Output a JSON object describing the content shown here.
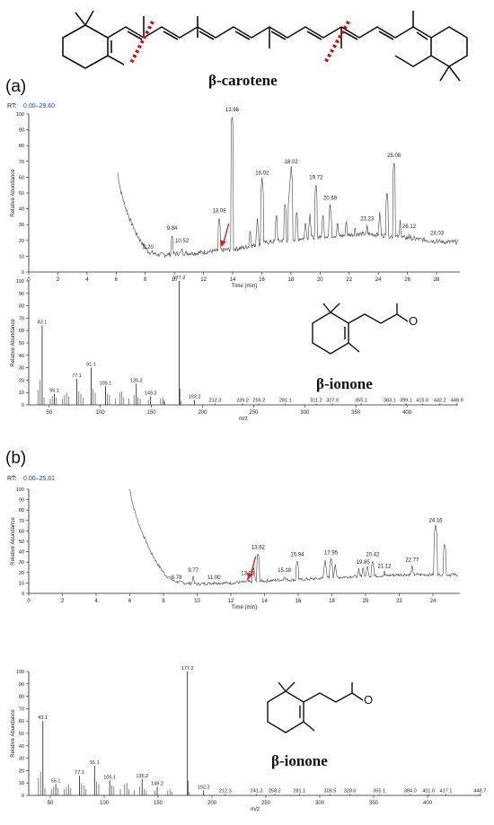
{
  "molecule_top": {
    "name": "β-carotene"
  },
  "panel_a": {
    "label": "(a)",
    "rt_label": "RT:",
    "rt_range": "0.00–29.60",
    "compound": "β-ionone"
  },
  "panel_b": {
    "label": "(b)",
    "rt_label": "RT:",
    "rt_range": "0.00–25.61",
    "compound": "β-ionone"
  },
  "colors": {
    "trace": "#444444",
    "axis": "#222222",
    "rt_range": "#1f3fb5",
    "arrow": "#e02020",
    "cut": "#d01010"
  },
  "chart_data": [
    {
      "id": "chromatogram-a",
      "type": "line",
      "xlabel": "Time (min)",
      "ylabel": "Relative Abundance",
      "xlim": [
        0,
        29.6
      ],
      "ylim": [
        0,
        100
      ],
      "xticks": [
        0,
        2,
        4,
        6,
        8,
        10,
        12,
        14,
        16,
        18,
        20,
        22,
        24,
        26,
        28
      ],
      "yticks": [
        0,
        10,
        20,
        30,
        40,
        50,
        60,
        70,
        80,
        90,
        100
      ],
      "baseline": [
        [
          6.1,
          63
        ],
        [
          6.3,
          52
        ],
        [
          6.6,
          42
        ],
        [
          7.0,
          32
        ],
        [
          7.4,
          24
        ],
        [
          7.8,
          18
        ],
        [
          8.2,
          13
        ],
        [
          8.8,
          11
        ],
        [
          9.5,
          11
        ],
        [
          10.5,
          12
        ],
        [
          11.5,
          12
        ],
        [
          12.5,
          13
        ],
        [
          13.5,
          14
        ],
        [
          14.5,
          15
        ],
        [
          15.5,
          17
        ],
        [
          16.5,
          19
        ],
        [
          17.5,
          20
        ],
        [
          18.5,
          21
        ],
        [
          19.5,
          22
        ],
        [
          20.5,
          23
        ],
        [
          21.5,
          23
        ],
        [
          22.5,
          24
        ],
        [
          23.5,
          24
        ],
        [
          24.5,
          23
        ],
        [
          25.5,
          22
        ],
        [
          26.5,
          21
        ],
        [
          27.5,
          20
        ],
        [
          28.5,
          19
        ],
        [
          29.5,
          19
        ]
      ],
      "peaks": [
        {
          "x": 8.2,
          "y": 13,
          "label": "8.20"
        },
        {
          "x": 9.84,
          "y": 25,
          "label": "9.84"
        },
        {
          "x": 10.52,
          "y": 17,
          "label": "10.52"
        },
        {
          "x": 13.08,
          "y": 36,
          "label": "13.08"
        },
        {
          "x": 13.96,
          "y": 100,
          "label": "13.96"
        },
        {
          "x": 16.02,
          "y": 60,
          "label": "16.02"
        },
        {
          "x": 18.02,
          "y": 67,
          "label": "18.02"
        },
        {
          "x": 19.72,
          "y": 57,
          "label": "19.72"
        },
        {
          "x": 20.69,
          "y": 44,
          "label": "20.69"
        },
        {
          "x": 23.23,
          "y": 31,
          "label": "23.23"
        },
        {
          "x": 25.08,
          "y": 71,
          "label": "25.08"
        },
        {
          "x": 26.12,
          "y": 26,
          "label": "26.12"
        },
        {
          "x": 28.03,
          "y": 22,
          "label": "28.03"
        }
      ],
      "extra_peaks": [
        [
          15.2,
          28
        ],
        [
          15.7,
          34
        ],
        [
          17.0,
          38
        ],
        [
          17.6,
          45
        ],
        [
          17.9,
          52
        ],
        [
          18.4,
          40
        ],
        [
          19.0,
          33
        ],
        [
          19.3,
          37
        ],
        [
          20.2,
          38
        ],
        [
          21.2,
          33
        ],
        [
          21.8,
          34
        ],
        [
          22.4,
          30
        ],
        [
          24.1,
          38
        ],
        [
          24.6,
          52
        ],
        [
          25.5,
          33
        ]
      ],
      "arrow_at": 13.3
    },
    {
      "id": "spectrum-a",
      "type": "bar",
      "xlabel": "m/z",
      "ylabel": "Relative Abundance",
      "xlim": [
        30,
        450
      ],
      "ylim": [
        0,
        100
      ],
      "xticks": [
        50,
        100,
        150,
        200,
        250,
        300,
        350,
        400
      ],
      "yticks": [
        0,
        10,
        20,
        30,
        40,
        50,
        60,
        70,
        80,
        90,
        100
      ],
      "peaks": [
        {
          "x": 43.1,
          "y": 64,
          "label": "43.1"
        },
        {
          "x": 55.1,
          "y": 9,
          "label": "55.1"
        },
        {
          "x": 77.1,
          "y": 21,
          "label": "77.1"
        },
        {
          "x": 91.1,
          "y": 30,
          "label": "91.1"
        },
        {
          "x": 105.1,
          "y": 15,
          "label": "105.1"
        },
        {
          "x": 135.2,
          "y": 17,
          "label": "135.2"
        },
        {
          "x": 149.2,
          "y": 7,
          "label": "149.2"
        },
        {
          "x": 177.2,
          "y": 100,
          "label": "177.2"
        },
        {
          "x": 192.2,
          "y": 4,
          "label": "192.2"
        },
        {
          "x": 212.3,
          "y": 1,
          "label": "212.3"
        },
        {
          "x": 239.2,
          "y": 1,
          "label": "239.2"
        },
        {
          "x": 255.2,
          "y": 1,
          "label": "255.2"
        },
        {
          "x": 281.1,
          "y": 1,
          "label": "281.1"
        },
        {
          "x": 311.2,
          "y": 1,
          "label": "311.2"
        },
        {
          "x": 327.0,
          "y": 1,
          "label": "327.0"
        },
        {
          "x": 355.1,
          "y": 1,
          "label": "355.1"
        },
        {
          "x": 383.1,
          "y": 1,
          "label": "383.1"
        },
        {
          "x": 399.1,
          "y": 1,
          "label": "399.1"
        },
        {
          "x": 415.0,
          "y": 1,
          "label": "415.0"
        },
        {
          "x": 432.2,
          "y": 1,
          "label": "432.2"
        },
        {
          "x": 448.9,
          "y": 1,
          "label": "448.9"
        }
      ],
      "minor_peaks": [
        [
          39,
          12
        ],
        [
          41,
          20
        ],
        [
          45,
          6
        ],
        [
          51,
          5
        ],
        [
          53,
          7
        ],
        [
          57,
          6
        ],
        [
          63,
          5
        ],
        [
          65,
          8
        ],
        [
          67,
          10
        ],
        [
          69,
          7
        ],
        [
          79,
          11
        ],
        [
          81,
          9
        ],
        [
          83,
          6
        ],
        [
          93,
          13
        ],
        [
          95,
          10
        ],
        [
          107,
          9
        ],
        [
          109,
          8
        ],
        [
          115,
          5
        ],
        [
          119,
          10
        ],
        [
          121,
          11
        ],
        [
          123,
          6
        ],
        [
          128,
          5
        ],
        [
          133,
          8
        ],
        [
          137,
          6
        ],
        [
          139,
          5
        ],
        [
          147,
          4
        ],
        [
          159,
          5
        ],
        [
          161,
          6
        ],
        [
          162,
          4
        ],
        [
          163,
          3
        ],
        [
          178,
          13
        ],
        [
          179,
          3
        ]
      ]
    },
    {
      "id": "chromatogram-b",
      "type": "line",
      "xlabel": "Time (min)",
      "ylabel": "Relative Abundance",
      "xlim": [
        0,
        25.6
      ],
      "ylim": [
        0,
        100
      ],
      "xticks": [
        0,
        2,
        4,
        6,
        8,
        10,
        12,
        14,
        16,
        18,
        20,
        22,
        24
      ],
      "yticks": [
        0,
        10,
        20,
        30,
        40,
        50,
        60,
        70,
        80,
        90,
        100
      ],
      "baseline": [
        [
          6.0,
          100
        ],
        [
          6.2,
          84
        ],
        [
          6.5,
          68
        ],
        [
          6.9,
          52
        ],
        [
          7.3,
          38
        ],
        [
          7.7,
          27
        ],
        [
          8.1,
          18
        ],
        [
          8.6,
          12
        ],
        [
          9.2,
          10
        ],
        [
          10.0,
          9
        ],
        [
          11.0,
          10
        ],
        [
          12.0,
          10
        ],
        [
          13.0,
          11
        ],
        [
          14.0,
          12
        ],
        [
          15.0,
          13
        ],
        [
          16.0,
          13
        ],
        [
          17.0,
          14
        ],
        [
          18.0,
          15
        ],
        [
          19.0,
          16
        ],
        [
          20.0,
          17
        ],
        [
          21.0,
          17
        ],
        [
          22.0,
          18
        ],
        [
          23.0,
          18
        ],
        [
          24.0,
          18
        ],
        [
          25.0,
          18
        ],
        [
          25.5,
          18
        ]
      ],
      "peaks": [
        {
          "x": 8.78,
          "y": 11,
          "label": "8.78"
        },
        {
          "x": 9.77,
          "y": 18,
          "label": "9.77"
        },
        {
          "x": 11.0,
          "y": 11,
          "label": "11.00"
        },
        {
          "x": 13.0,
          "y": 15,
          "label": "13.00"
        },
        {
          "x": 13.62,
          "y": 40,
          "label": "13.62"
        },
        {
          "x": 15.18,
          "y": 18,
          "label": "15.18"
        },
        {
          "x": 15.94,
          "y": 33,
          "label": "15.94"
        },
        {
          "x": 17.95,
          "y": 35,
          "label": "17.95"
        },
        {
          "x": 19.85,
          "y": 26,
          "label": "19.85"
        },
        {
          "x": 20.42,
          "y": 33,
          "label": "20.42"
        },
        {
          "x": 21.12,
          "y": 22,
          "label": "21.12"
        },
        {
          "x": 22.77,
          "y": 28,
          "label": "22.77"
        },
        {
          "x": 24.16,
          "y": 66,
          "label": "24.16"
        }
      ],
      "extra_peaks": [
        [
          13.35,
          26
        ],
        [
          17.6,
          32
        ],
        [
          18.2,
          28
        ],
        [
          19.6,
          24
        ],
        [
          20.1,
          28
        ],
        [
          24.7,
          49
        ]
      ],
      "arrow_at": 13.1
    },
    {
      "id": "spectrum-b",
      "type": "bar",
      "xlabel": "m/z",
      "ylabel": "Relative Abundance",
      "xlim": [
        30,
        450
      ],
      "ylim": [
        0,
        100
      ],
      "xticks": [
        50,
        100,
        150,
        200,
        250,
        300,
        350,
        400
      ],
      "yticks": [
        0,
        10,
        20,
        30,
        40,
        50,
        60,
        70,
        80,
        90,
        100
      ],
      "peaks": [
        {
          "x": 43.1,
          "y": 60,
          "label": "43.1"
        },
        {
          "x": 55.1,
          "y": 9,
          "label": "55.1"
        },
        {
          "x": 77.1,
          "y": 16,
          "label": "77.1"
        },
        {
          "x": 91.1,
          "y": 24,
          "label": "91.1"
        },
        {
          "x": 105.1,
          "y": 12,
          "label": "105.1"
        },
        {
          "x": 135.2,
          "y": 13,
          "label": "135.2"
        },
        {
          "x": 149.2,
          "y": 7,
          "label": "149.2"
        },
        {
          "x": 177.2,
          "y": 100,
          "label": "177.2"
        },
        {
          "x": 192.2,
          "y": 4,
          "label": "192.2"
        },
        {
          "x": 212.3,
          "y": 1,
          "label": "212.3"
        },
        {
          "x": 241.3,
          "y": 1,
          "label": "241.3"
        },
        {
          "x": 258.2,
          "y": 1,
          "label": "258.2"
        },
        {
          "x": 281.1,
          "y": 1,
          "label": "281.1"
        },
        {
          "x": 309.5,
          "y": 1,
          "label": "309.5"
        },
        {
          "x": 328.0,
          "y": 1,
          "label": "328.0"
        },
        {
          "x": 355.1,
          "y": 1,
          "label": "355.1"
        },
        {
          "x": 384.0,
          "y": 1,
          "label": "384.0"
        },
        {
          "x": 401.0,
          "y": 1,
          "label": "401.0"
        },
        {
          "x": 417.1,
          "y": 1,
          "label": "417.1"
        },
        {
          "x": 448.7,
          "y": 1,
          "label": "448.7"
        }
      ],
      "minor_peaks": [
        [
          39,
          14
        ],
        [
          41,
          19
        ],
        [
          45,
          6
        ],
        [
          51,
          5
        ],
        [
          53,
          7
        ],
        [
          57,
          6
        ],
        [
          63,
          5
        ],
        [
          65,
          7
        ],
        [
          67,
          9
        ],
        [
          69,
          6
        ],
        [
          79,
          10
        ],
        [
          81,
          8
        ],
        [
          83,
          5
        ],
        [
          93,
          11
        ],
        [
          95,
          9
        ],
        [
          107,
          8
        ],
        [
          109,
          7
        ],
        [
          115,
          5
        ],
        [
          119,
          9
        ],
        [
          121,
          10
        ],
        [
          123,
          5
        ],
        [
          128,
          4
        ],
        [
          133,
          7
        ],
        [
          137,
          5
        ],
        [
          139,
          4
        ],
        [
          147,
          4
        ],
        [
          159,
          4
        ],
        [
          161,
          5
        ],
        [
          163,
          3
        ],
        [
          178,
          12
        ],
        [
          179,
          3
        ]
      ]
    }
  ]
}
